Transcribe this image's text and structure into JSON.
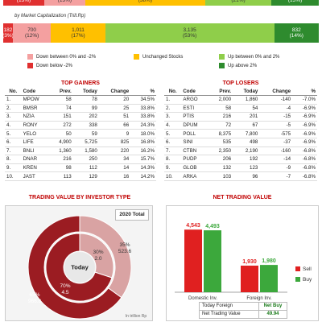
{
  "top_bar": [
    {
      "label": "(13%)",
      "color": "#e03030"
    },
    {
      "label": "(13%)",
      "color": "#f4a0a0"
    },
    {
      "label": "(38%)",
      "color": "#ffc000"
    },
    {
      "label": "(21%)",
      "color": "#8fce4a"
    },
    {
      "label": "(15%)",
      "color": "#2e8b2e"
    }
  ],
  "caption": "by Market Capitalization (Trill.Rp)",
  "cap_bar": [
    {
      "value": "182",
      "pct": "(3%)",
      "color": "#e03030"
    },
    {
      "value": "700",
      "pct": "(12%)",
      "color": "#f4a0a0"
    },
    {
      "value": "1,011",
      "pct": "(17%)",
      "color": "#ffc000"
    },
    {
      "value": "3,135",
      "pct": "(53%)",
      "color": "#8fce4a"
    },
    {
      "value": "832",
      "pct": "(14%)",
      "color": "#2e8b2e"
    }
  ],
  "legend": {
    "down_between": "Down between 0% and -2%",
    "down_below": "Down below -2%",
    "unchanged": "Unchanged Stocks",
    "up_between": "Up between 0% and 2%",
    "up_above": "Up above 2%"
  },
  "top_gainers": {
    "title": "TOP GAINERS",
    "headers": [
      "No.",
      "Code",
      "Prev.",
      "Today",
      "Change",
      "%"
    ],
    "rows": [
      [
        "1.",
        "MPOW",
        "58",
        "78",
        "20",
        "34.5%"
      ],
      [
        "2.",
        "BMSR",
        "74",
        "99",
        "25",
        "33.8%"
      ],
      [
        "3.",
        "NZIA",
        "151",
        "202",
        "51",
        "33.8%"
      ],
      [
        "4.",
        "RONY",
        "272",
        "338",
        "66",
        "24.3%"
      ],
      [
        "5.",
        "YELO",
        "50",
        "59",
        "9",
        "18.0%"
      ],
      [
        "6.",
        "LIFE",
        "4,900",
        "5,725",
        "825",
        "16.8%"
      ],
      [
        "7.",
        "BNLI",
        "1,360",
        "1,580",
        "220",
        "16.2%"
      ],
      [
        "8.",
        "DNAR",
        "216",
        "250",
        "34",
        "15.7%"
      ],
      [
        "9.",
        "KREN",
        "98",
        "112",
        "14",
        "14.3%"
      ],
      [
        "10.",
        "JAST",
        "113",
        "129",
        "16",
        "14.2%"
      ]
    ]
  },
  "top_losers": {
    "title": "TOP LOSERS",
    "headers": [
      "No.",
      "Code",
      "Prev.",
      "Today",
      "Change",
      "%"
    ],
    "rows": [
      [
        "1.",
        "ARGO",
        "2,000",
        "1,860",
        "-140",
        "-7.0%"
      ],
      [
        "2.",
        "ESTI",
        "58",
        "54",
        "-4",
        "-6.9%"
      ],
      [
        "3.",
        "PTIS",
        "216",
        "201",
        "-15",
        "-6.9%"
      ],
      [
        "4.",
        "DPUM",
        "72",
        "67",
        "-5",
        "-6.9%"
      ],
      [
        "5.",
        "POLL",
        "8,375",
        "7,800",
        "-575",
        "-6.9%"
      ],
      [
        "6.",
        "SINI",
        "535",
        "498",
        "-37",
        "-6.9%"
      ],
      [
        "7.",
        "CTBN",
        "2,350",
        "2,190",
        "-160",
        "-6.8%"
      ],
      [
        "8.",
        "PUDP",
        "206",
        "192",
        "-14",
        "-6.8%"
      ],
      [
        "9.",
        "GLOB",
        "132",
        "123",
        "-9",
        "-6.8%"
      ],
      [
        "10.",
        "ARKA",
        "103",
        "96",
        "-7",
        "-6.8%"
      ]
    ]
  },
  "investor_chart": {
    "title": "TRADING VALUE BY INVESTOR TYPE",
    "total_label": "2020 Total",
    "center_label": "Today",
    "outer_foreign": {
      "pct": "35%",
      "value": "523.6"
    },
    "outer_domestic": {
      "pct": "65%",
      "value": "966.8"
    },
    "inner_foreign": {
      "pct": "30%",
      "value": "2.0"
    },
    "inner_domestic": {
      "pct": "70%",
      "value": "4.5"
    },
    "unit": "In trillion Rp",
    "colors": {
      "domestic": "#9b1c22",
      "foreign": "#d9a3a3"
    }
  },
  "net_trading": {
    "title": "NET TRADING VALUE",
    "categories": [
      "Domestic Inv.",
      "Foreign Inv."
    ],
    "series": [
      {
        "name": "Sell",
        "values": [
          4543,
          1930
        ],
        "labels": [
          "4,543",
          "1,930"
        ],
        "color": "#e02020"
      },
      {
        "name": "Buy",
        "values": [
          4493,
          1980
        ],
        "labels": [
          "4,493",
          "1,980"
        ],
        "color": "#3ca83c"
      }
    ],
    "ymax": 5200,
    "table": [
      {
        "label": "Today Foreign",
        "value": "Net Buy",
        "color": "#1a7a1a"
      },
      {
        "label": "Net Trading Value",
        "value": "49.94",
        "color": "#1a7a1a"
      }
    ]
  }
}
